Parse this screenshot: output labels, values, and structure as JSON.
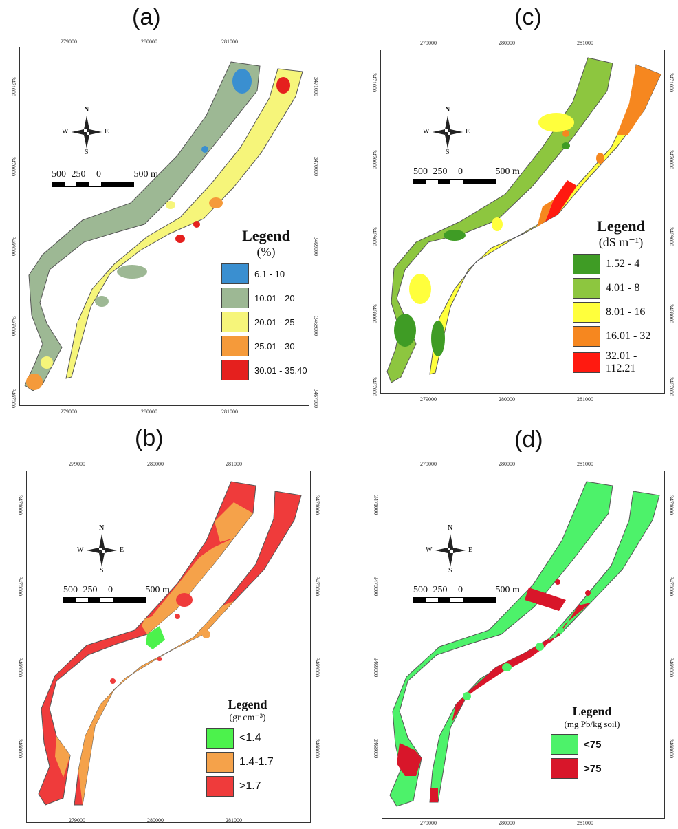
{
  "panels": [
    {
      "id": "a",
      "label": "(a)",
      "x_ticks": [
        "279000",
        "280000",
        "281000"
      ],
      "y_ticks": [
        "3471000",
        "3470000",
        "3469000",
        "3468000",
        "3467000"
      ],
      "scale": {
        "labels": [
          "500",
          "250",
          "0",
          "500 m"
        ]
      },
      "compass": {
        "n": "N",
        "s": "S",
        "e": "E",
        "w": "W"
      },
      "legend": {
        "title": "Legend",
        "unit": "(%)",
        "items": [
          {
            "label": "6.1 - 10",
            "color": "#3a8fd0"
          },
          {
            "label": "10.01 - 20",
            "color": "#9db894"
          },
          {
            "label": "20.01 - 25",
            "color": "#f6f57a"
          },
          {
            "label": "25.01 - 30",
            "color": "#f59a3a"
          },
          {
            "label": "30.01 - 35.40",
            "color": "#e5201e"
          }
        ]
      }
    },
    {
      "id": "c",
      "label": "(c)",
      "x_ticks": [
        "279000",
        "280000",
        "281000"
      ],
      "y_ticks": [
        "3471000",
        "3470000",
        "3469000",
        "3468000",
        "3467000"
      ],
      "scale": {
        "labels": [
          "500",
          "250",
          "0",
          "500 m"
        ]
      },
      "compass": {
        "n": "N",
        "s": "S",
        "e": "E",
        "w": "W"
      },
      "legend": {
        "title": "Legend",
        "unit": "(dS m⁻¹)",
        "items": [
          {
            "label": "1.52 - 4",
            "color": "#3f9c25"
          },
          {
            "label": "4.01 - 8",
            "color": "#8dc63f"
          },
          {
            "label": "8.01 - 16",
            "color": "#ffff3c"
          },
          {
            "label": "16.01 - 32",
            "color": "#f6871f"
          },
          {
            "label": "32.01 - 112.21",
            "color": "#ff1a10"
          }
        ]
      }
    },
    {
      "id": "b",
      "label": "(b)",
      "x_ticks": [
        "279000",
        "280000",
        "281000"
      ],
      "y_ticks": [
        "3471000",
        "3470000",
        "3469000",
        "3468000"
      ],
      "scale": {
        "labels": [
          "500",
          "250",
          "0",
          "500 m"
        ]
      },
      "compass": {
        "n": "N",
        "s": "S",
        "e": "E",
        "w": "W"
      },
      "legend": {
        "title": "Legend",
        "unit": "(gr cm⁻³)",
        "items": [
          {
            "label": "<1.4",
            "color": "#4cf24c"
          },
          {
            "label": "1.4-1.7",
            "color": "#f5a24a"
          },
          {
            "label": ">1.7",
            "color": "#ef3b3b"
          }
        ]
      }
    },
    {
      "id": "d",
      "label": "(d)",
      "x_ticks": [
        "279000",
        "280000",
        "281000"
      ],
      "y_ticks": [
        "3471000",
        "3470000",
        "3469000",
        "3468000"
      ],
      "scale": {
        "labels": [
          "500",
          "250",
          "0",
          "500 m"
        ]
      },
      "compass": {
        "n": "N",
        "s": "S",
        "e": "E",
        "w": "W"
      },
      "legend": {
        "title": "Legend",
        "unit": "(mg Pb/kg soil)",
        "items": [
          {
            "label": "<75",
            "color": "#4df26a"
          },
          {
            "label": ">75",
            "color": "#d8162a"
          }
        ]
      }
    }
  ]
}
